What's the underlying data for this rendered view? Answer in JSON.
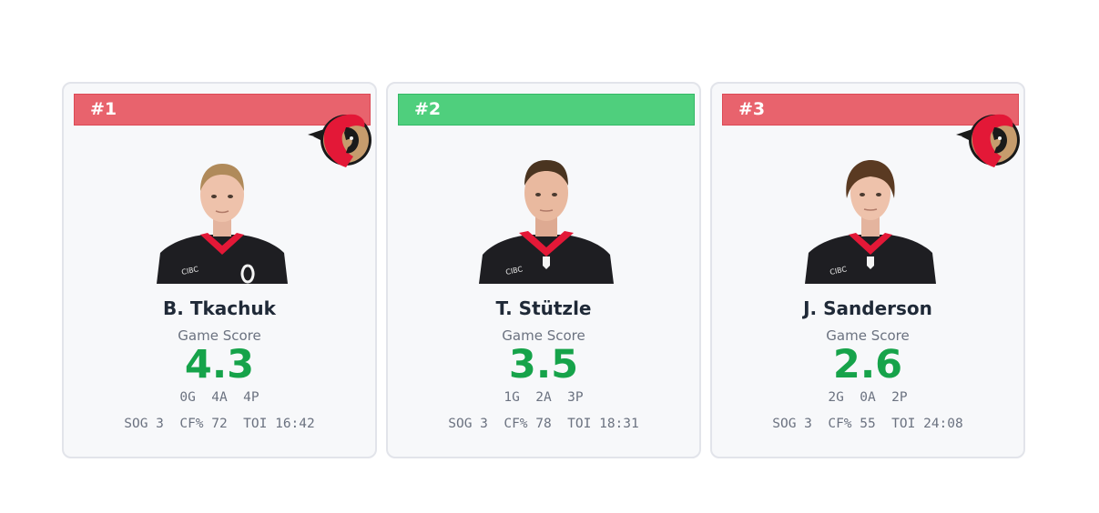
{
  "cards": [
    {
      "rank": "#1",
      "rank_color": "#e8636d",
      "rank_border": "#dc4a55",
      "show_logo": true,
      "logo_icon": "ottawa-senators-logo-icon",
      "photo_icon": "player-headshot-icon",
      "name": "B. Tkachuk",
      "metric_label": "Game Score",
      "score": "4.3",
      "points_line": "0G  4A  4P",
      "stats_line": "SOG 3  CF% 72  TOI 16:42"
    },
    {
      "rank": "#2",
      "rank_color": "#4fcf7d",
      "rank_border": "#34b866",
      "show_logo": false,
      "photo_icon": "player-headshot-icon",
      "name": "T. Stützle",
      "metric_label": "Game Score",
      "score": "3.5",
      "points_line": "1G  2A  3P",
      "stats_line": "SOG 3  CF% 78  TOI 18:31"
    },
    {
      "rank": "#3",
      "rank_color": "#e8636d",
      "rank_border": "#dc4a55",
      "show_logo": true,
      "logo_icon": "ottawa-senators-logo-icon",
      "photo_icon": "player-headshot-icon",
      "name": "J. Sanderson",
      "metric_label": "Game Score",
      "score": "2.6",
      "points_line": "2G  0A  2P",
      "stats_line": "SOG 3  CF% 55  TOI 24:08"
    }
  ],
  "colors": {
    "score": "#16a34a",
    "card_bg": "#f7f8fa",
    "card_border": "#e2e4ea",
    "name": "#1f2937",
    "muted": "#6b7280"
  }
}
